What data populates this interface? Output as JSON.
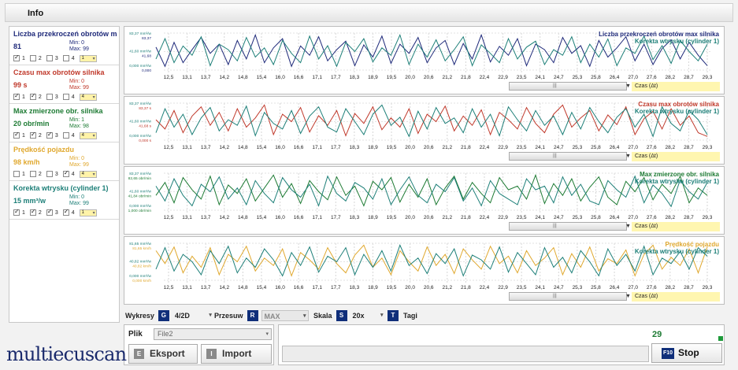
{
  "header": {
    "title": "Info"
  },
  "sensors": [
    {
      "name": "Liczba przekroczeń obrotów max silnika",
      "value": "81",
      "min": "Min: 0",
      "max": "Max: 99",
      "color": "#1f2a7a",
      "checks": [
        true,
        false,
        false,
        false
      ],
      "dd": "1"
    },
    {
      "name": "Czasu max obrotów silnika",
      "value": "99 s",
      "min": "Min: 0",
      "max": "Max: 99",
      "color": "#c0392b",
      "checks": [
        true,
        true,
        false,
        false
      ],
      "dd": "4"
    },
    {
      "name": "Max zmierzone obr. silnika",
      "value": "20 obr/min",
      "min": "Min: 1",
      "max": "Max: 98",
      "color": "#1e7b34",
      "checks": [
        true,
        true,
        true,
        false
      ],
      "dd": "4"
    },
    {
      "name": "Prędkość pojazdu",
      "value": "98 km/h",
      "min": "Min: 0",
      "max": "Max: 99",
      "color": "#e0a82e",
      "checks": [
        false,
        false,
        false,
        true
      ],
      "dd": "4"
    },
    {
      "name": "Korekta wtrysku (cylinder 1)",
      "value": "15 mm³/w",
      "min": "Min: 0",
      "max": "Max: 99",
      "color": "#1d7f78",
      "checks": [
        true,
        true,
        true,
        true
      ],
      "dd": "1"
    }
  ],
  "check_labels": [
    "1",
    "2",
    "3",
    "4"
  ],
  "chart_data": [
    {
      "type": "line",
      "x_ticks": [
        "12,5",
        "13,1",
        "13,7",
        "14,2",
        "14,8",
        "15,4",
        "16,0",
        "16,6",
        "17,1",
        "17,7",
        "18,3",
        "18,9",
        "19,5",
        "20,0",
        "20,6",
        "21,2",
        "21,8",
        "22,4",
        "22,9",
        "23,5",
        "24,1",
        "24,7",
        "25,3",
        "25,8",
        "26,4",
        "27,0",
        "27,6",
        "28,2",
        "28,7",
        "29,3"
      ],
      "y_labels": [
        {
          "text": "83,37 mm³/w",
          "color": "#1d7f78"
        },
        {
          "text": "83,37",
          "color": "#1f2a7a"
        },
        {
          "text": "41,60 mm³/w",
          "color": "#1d7f78"
        },
        {
          "text": "41,68",
          "color": "#1f2a7a"
        },
        {
          "text": "0,000 mm³/w",
          "color": "#1d7f78"
        },
        {
          "text": "0,000",
          "color": "#1f2a7a"
        }
      ],
      "series": [
        {
          "name": "Liczba przekroczeń obrotów max silnika",
          "color": "#1f2a7a",
          "values": [
            62,
            10,
            75,
            20,
            55,
            88,
            45,
            70,
            15,
            80,
            30,
            95,
            20,
            60,
            85,
            10,
            65,
            40,
            90,
            25,
            55,
            78,
            12,
            68,
            35,
            92,
            18,
            70,
            45,
            88,
            20,
            60,
            80,
            15,
            72,
            30,
            95,
            22,
            64,
            40,
            85,
            12,
            70,
            55,
            20,
            88,
            45,
            66,
            10,
            80,
            35,
            60,
            90,
            25,
            70,
            15,
            58,
            82,
            30,
            75,
            40,
            12
          ]
        },
        {
          "name": "Korekta wtrysku (cylinder 1)",
          "color": "#1d7f78",
          "values": [
            30,
            85,
            20,
            65,
            40,
            90,
            12,
            70,
            55,
            25,
            88,
            35,
            60,
            15,
            80,
            45,
            20,
            92,
            30,
            66,
            10,
            75,
            50,
            85,
            22,
            60,
            40,
            95,
            15,
            70,
            35,
            82,
            25,
            55,
            90,
            12,
            68,
            45,
            20,
            85,
            30,
            62,
            78,
            15,
            55,
            40,
            90,
            20,
            70,
            35,
            84,
            12,
            60,
            45,
            92,
            28,
            66,
            18,
            80,
            50,
            25,
            70
          ]
        }
      ],
      "legend": [
        "Liczba przekroczeń obrotów max silnika",
        "Korekta wtrysku (cylinder 1)"
      ],
      "time_label": "Czas (Δt)"
    },
    {
      "type": "line",
      "x_ticks": [
        "12,5",
        "13,1",
        "13,7",
        "14,2",
        "14,8",
        "15,4",
        "16,0",
        "16,6",
        "17,1",
        "17,7",
        "18,3",
        "18,9",
        "19,5",
        "20,0",
        "20,6",
        "21,2",
        "21,8",
        "22,4",
        "22,9",
        "23,5",
        "24,1",
        "24,7",
        "25,3",
        "25,8",
        "26,4",
        "27,0",
        "27,6",
        "28,2",
        "28,7",
        "29,3"
      ],
      "y_labels": [
        {
          "text": "83,37 mm³/w",
          "color": "#1d7f78"
        },
        {
          "text": "83,37 s",
          "color": "#c0392b"
        },
        {
          "text": "41,60 mm³/w",
          "color": "#1d7f78"
        },
        {
          "text": "41,68 s",
          "color": "#c0392b"
        },
        {
          "text": "0,000 mm³/w",
          "color": "#1d7f78"
        },
        {
          "text": "0,000 s",
          "color": "#c0392b"
        }
      ],
      "series": [
        {
          "name": "Czasu max obrotów silnika",
          "color": "#c0392b",
          "values": [
            55,
            30,
            80,
            20,
            65,
            90,
            40,
            75,
            25,
            85,
            35,
            60,
            95,
            15,
            70,
            50,
            88,
            22,
            66,
            40,
            80,
            12,
            72,
            45,
            90,
            28,
            60,
            35,
            85,
            18,
            70,
            50,
            92,
            25,
            65,
            40,
            82,
            15,
            75,
            55,
            30,
            88,
            45,
            20,
            70,
            95,
            35,
            60,
            80,
            25,
            68,
            42,
            90,
            15,
            58,
            78,
            30,
            85,
            40,
            65,
            20,
            10
          ]
        },
        {
          "name": "Korekta wtrysku (cylinder 1)",
          "color": "#1d7f78",
          "values": [
            20,
            85,
            35,
            70,
            15,
            60,
            88,
            25,
            55,
            40,
            92,
            12,
            75,
            45,
            30,
            80,
            18,
            65,
            90,
            35,
            22,
            85,
            50,
            15,
            70,
            95,
            40,
            62,
            10,
            78,
            30,
            88,
            45,
            60,
            20,
            85,
            35,
            70,
            12,
            90,
            55,
            25,
            80,
            40,
            65,
            15,
            75,
            30,
            88,
            50,
            20,
            62,
            85,
            35,
            70,
            10,
            90,
            45,
            25,
            80,
            55,
            15
          ]
        }
      ],
      "legend": [
        "Czasu max obrotów silnika",
        "Korekta wtrysku (cylinder 1)"
      ],
      "time_label": "Czas (Δt)"
    },
    {
      "type": "line",
      "x_ticks": [
        "12,5",
        "13,1",
        "13,7",
        "14,2",
        "14,8",
        "15,4",
        "16,0",
        "16,6",
        "17,1",
        "17,7",
        "18,3",
        "18,9",
        "19,5",
        "20,0",
        "20,6",
        "21,2",
        "21,8",
        "22,4",
        "22,9",
        "23,5",
        "24,1",
        "24,7",
        "25,3",
        "25,8",
        "26,4",
        "27,0",
        "27,6",
        "28,2",
        "28,7",
        "29,3"
      ],
      "y_labels": [
        {
          "text": "83,37 mm³/w",
          "color": "#1d7f78"
        },
        {
          "text": "82,65 obr/min",
          "color": "#1e7b34"
        },
        {
          "text": "41,60 mm³/w",
          "color": "#1d7f78"
        },
        {
          "text": "41,84 obr/min",
          "color": "#1e7b34"
        },
        {
          "text": "0,000 mm³/w",
          "color": "#1d7f78"
        },
        {
          "text": "1,000 obr/min",
          "color": "#1e7b34"
        }
      ],
      "series": [
        {
          "name": "Max zmierzone obr. silnika",
          "color": "#1e7b34",
          "values": [
            40,
            75,
            20,
            88,
            55,
            30,
            92,
            15,
            68,
            45,
            85,
            25,
            60,
            95,
            35,
            72,
            18,
            80,
            50,
            28,
            90,
            40,
            65,
            12,
            78,
            55,
            88,
            22,
            70,
            35,
            85,
            15,
            60,
            92,
            30,
            75,
            45,
            20,
            88,
            55,
            65,
            30,
            95,
            18,
            72,
            40,
            85,
            25,
            62,
            90,
            35,
            15,
            78,
            50,
            88,
            28,
            70,
            45,
            92,
            20,
            60,
            40
          ]
        },
        {
          "name": "Korekta wtrysku (cylinder 1)",
          "color": "#1d7f78",
          "values": [
            65,
            25,
            85,
            40,
            12,
            70,
            50,
            90,
            30,
            60,
            15,
            80,
            45,
            20,
            88,
            55,
            35,
            70,
            12,
            92,
            45,
            25,
            75,
            60,
            30,
            85,
            15,
            55,
            90,
            40,
            20,
            70,
            50,
            88,
            25,
            60,
            12,
            80,
            45,
            30,
            15,
            85,
            55,
            65,
            20,
            90,
            40,
            70,
            25,
            15,
            80,
            55,
            35,
            92,
            20,
            68,
            45,
            10,
            82,
            50,
            30,
            75
          ]
        }
      ],
      "legend": [
        "Max zmierzone obr. silnika",
        "Korekta wtrysku (cylinder 1)"
      ],
      "time_label": "Czas (Δt)"
    },
    {
      "type": "line",
      "x_ticks": [
        "12,5",
        "13,1",
        "13,7",
        "14,2",
        "14,8",
        "15,4",
        "16,0",
        "16,6",
        "17,1",
        "17,7",
        "18,3",
        "18,9",
        "19,5",
        "20,0",
        "20,6",
        "21,2",
        "21,8",
        "22,4",
        "22,9",
        "23,5",
        "24,1",
        "24,7",
        "25,3",
        "25,8",
        "26,4",
        "27,0",
        "27,6",
        "28,2",
        "28,7",
        "29,3"
      ],
      "y_labels": [
        {
          "text": "81,65 mm³/w",
          "color": "#1d7f78"
        },
        {
          "text": "81,65 km/h",
          "color": "#e0a82e"
        },
        {
          "text": "40,82 mm³/w",
          "color": "#1d7f78"
        },
        {
          "text": "40,82 km/h",
          "color": "#e0a82e"
        },
        {
          "text": "0,000 mm³/w",
          "color": "#1d7f78"
        },
        {
          "text": "0,000 km/h",
          "color": "#e0a82e"
        }
      ],
      "series": [
        {
          "name": "Prędkość pojazdu",
          "color": "#e0a82e",
          "values": [
            80,
            45,
            90,
            20,
            65,
            35,
            88,
            15,
            70,
            50,
            92,
            25,
            60,
            40,
            85,
            12,
            75,
            55,
            30,
            88,
            45,
            20,
            68,
            95,
            35,
            60,
            15,
            80,
            50,
            25,
            90,
            40,
            70,
            18,
            85,
            55,
            30,
            92,
            45,
            65,
            20,
            80,
            40,
            60,
            88,
            15,
            72,
            35,
            90,
            25,
            58,
            45,
            82,
            12,
            70,
            95,
            30,
            62,
            40,
            85,
            20,
            90
          ]
        },
        {
          "name": "Korekta wtrysku (cylinder 1)",
          "color": "#1d7f78",
          "values": [
            30,
            88,
            25,
            70,
            50,
            15,
            80,
            45,
            92,
            20,
            60,
            35,
            85,
            55,
            12,
            75,
            40,
            90,
            22,
            65,
            50,
            88,
            15,
            70,
            35,
            80,
            25,
            95,
            40,
            60,
            18,
            72,
            45,
            85,
            12,
            68,
            55,
            30,
            90,
            22,
            75,
            45,
            15,
            88,
            35,
            62,
            20,
            80,
            50,
            12,
            85,
            40,
            70,
            25,
            92,
            15,
            60,
            45,
            78,
            30,
            88,
            65
          ]
        }
      ],
      "legend": [
        "Prędkość pojazdu",
        "Korekta wtrysku (cylinder 1)"
      ],
      "time_label": "Czas (Δt)"
    }
  ],
  "controls": {
    "wykresy_label": "Wykresy",
    "wykresy_key": "G",
    "wykresy_value": "4/2D",
    "przesuw_label": "Przesuw",
    "przesuw_key": "R",
    "przesuw_value": "MAX",
    "skala_label": "Skala",
    "skala_key": "S",
    "skala_value": "20x",
    "tagi_label": "Tagi",
    "tagi_key": "T"
  },
  "file": {
    "label": "Plik",
    "value": "File2",
    "export_key": "E",
    "export_label": "Eksport",
    "import_key": "I",
    "import_label": "Import"
  },
  "status": {
    "counter": "29",
    "stop_key": "F10",
    "stop_label": "Stop"
  },
  "logo": "multiecuscan"
}
